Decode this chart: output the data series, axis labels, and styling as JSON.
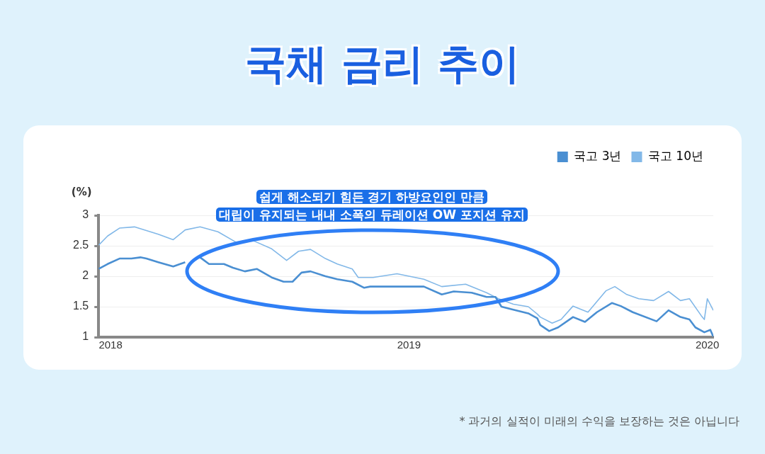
{
  "chart_data": {
    "type": "line",
    "title": "국채 금리 추이",
    "ylabel": "(%)",
    "annotations": [
      "쉽게 해소되기 힘든 경기 하방요인인 만큼\n대립이 유지되는 내내 소폭의 듀레이션 OW 포지션 유지",
      "* 과거의 실적이 미래의 수익을 보장하는 것은 아닙니다"
    ],
    "series": [
      {
        "name": "국고 3년",
        "color": "#4a8fd2",
        "x": [
          2017.96,
          2017.99,
          2018.03,
          2018.07,
          2018.1,
          2018.12,
          2018.16,
          2018.21,
          2018.25,
          2018.27,
          2018.3,
          2018.33,
          2018.38,
          2018.41,
          2018.45,
          2018.49,
          2018.54,
          2018.58,
          2018.61,
          2018.64,
          2018.67,
          2018.72,
          2018.76,
          2018.81,
          2018.85,
          2018.87,
          2018.96,
          2019.05,
          2019.11,
          2019.15,
          2019.21,
          2019.26,
          2019.29,
          2019.31,
          2019.35,
          2019.4,
          2019.43,
          2019.44,
          2019.47,
          2019.5,
          2019.55,
          2019.59,
          2019.63,
          2019.68,
          2019.71,
          2019.75,
          2019.83,
          2019.87,
          2019.91,
          2019.94,
          2019.96,
          2019.99,
          2020.01,
          2020.02
        ],
        "values": [
          2.12,
          2.2,
          2.29,
          2.29,
          2.31,
          2.29,
          2.23,
          2.16,
          2.23,
          null,
          2.31,
          2.2,
          2.2,
          2.14,
          2.08,
          2.12,
          1.98,
          1.91,
          1.91,
          2.06,
          2.08,
          2.0,
          1.95,
          1.91,
          1.81,
          1.83,
          1.83,
          1.83,
          1.7,
          1.75,
          1.73,
          1.66,
          1.66,
          1.5,
          1.45,
          1.39,
          1.31,
          1.2,
          1.1,
          1.16,
          1.33,
          1.25,
          1.41,
          1.56,
          1.51,
          1.41,
          1.26,
          1.44,
          1.33,
          1.29,
          1.16,
          1.08,
          1.12,
          1.01
        ]
      },
      {
        "name": "국고 10년",
        "color": "#82b8e8",
        "x": [
          2017.96,
          2017.99,
          2018.03,
          2018.08,
          2018.12,
          2018.16,
          2018.21,
          2018.25,
          2018.3,
          2018.36,
          2018.42,
          2018.48,
          2018.54,
          2018.59,
          2018.63,
          2018.67,
          2018.72,
          2018.76,
          2018.81,
          2018.83,
          2018.88,
          2018.96,
          2019.05,
          2019.11,
          2019.19,
          2019.26,
          2019.3,
          2019.35,
          2019.4,
          2019.43,
          2019.44,
          2019.48,
          2019.51,
          2019.55,
          2019.6,
          2019.66,
          2019.69,
          2019.73,
          2019.77,
          2019.82,
          2019.87,
          2019.91,
          2019.94,
          2019.98,
          2019.99,
          2020.0,
          2020.02
        ],
        "values": [
          2.51,
          2.66,
          2.79,
          2.81,
          2.75,
          2.69,
          2.6,
          2.76,
          2.81,
          2.73,
          2.56,
          2.58,
          2.45,
          2.26,
          2.41,
          2.44,
          2.29,
          2.2,
          2.12,
          1.98,
          1.98,
          2.04,
          1.95,
          1.83,
          1.87,
          1.73,
          1.63,
          1.54,
          1.5,
          1.38,
          1.33,
          1.23,
          1.29,
          1.51,
          1.41,
          1.76,
          1.83,
          1.7,
          1.63,
          1.6,
          1.75,
          1.6,
          1.63,
          1.35,
          1.29,
          1.63,
          1.44
        ]
      }
    ],
    "xlim": [
      2017.96,
      2020.02
    ],
    "xticks": [
      2018,
      2019,
      2020
    ],
    "ylim": [
      1,
      3
    ],
    "yticks": [
      1,
      1.5,
      2,
      2.5,
      3
    ],
    "grid": "y",
    "legend": "top right",
    "marker": "none",
    "line_style": "solid"
  }
}
